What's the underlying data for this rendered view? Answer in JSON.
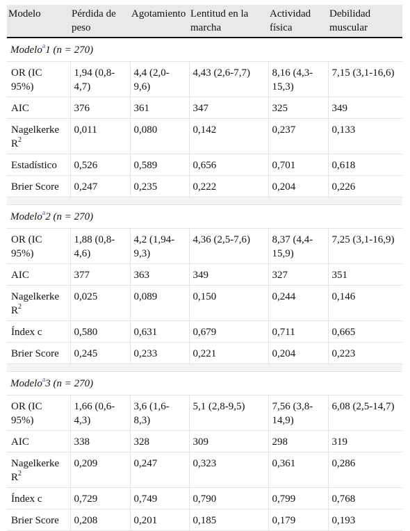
{
  "headers": [
    "Modelo",
    "Pérdida de peso",
    "Agotamiento",
    "Lentitud en la marcha",
    "Actividad física",
    "Debilidad muscular"
  ],
  "sections": [
    {
      "label_pre": "Modelo",
      "footnote": "a",
      "label_post": "1 (n = 270)",
      "rows": [
        {
          "label": "OR (IC 95%)",
          "values": [
            "1,94 (0,8-4,7)",
            "4,4 (2,0-9,6)",
            "4,43 (2,6-7,7)",
            "8,16 (4,3-15,3)",
            "7,15 (3,1-16,6)"
          ]
        },
        {
          "label": "AIC",
          "values": [
            "376",
            "361",
            "347",
            "325",
            "349"
          ]
        },
        {
          "label": "Nagelkerke R",
          "sup": "2",
          "values": [
            "0,011",
            "0,080",
            "0,142",
            "0,237",
            "0,133"
          ]
        },
        {
          "label": "Estadístico",
          "values": [
            "0,526",
            "0,589",
            "0,656",
            "0,701",
            "0,618"
          ]
        },
        {
          "label": "Brier Score",
          "values": [
            "0,247",
            "0,235",
            "0,222",
            "0,204",
            "0,226"
          ]
        }
      ]
    },
    {
      "label_pre": "Modelo",
      "footnote": "a",
      "label_post": "2 (n = 270)",
      "rows": [
        {
          "label": "OR (IC 95%)",
          "values": [
            "1,88 (0,8-4,6)",
            "4,2 (1,94-9,3)",
            "4,36 (2,5-7,6)",
            "8,37 (4,4-15,9)",
            "7,25 (3,1-16,9)"
          ]
        },
        {
          "label": "AIC",
          "values": [
            "377",
            "363",
            "349",
            "327",
            "351"
          ]
        },
        {
          "label": "Nagelkerke R",
          "sup": "2",
          "values": [
            "0,025",
            "0,089",
            "0,150",
            "0,244",
            "0,146"
          ]
        },
        {
          "label": "Índex c",
          "values": [
            "0,580",
            "0,631",
            "0,679",
            "0,711",
            "0,665"
          ]
        },
        {
          "label": "Brier Score",
          "values": [
            "0,245",
            "0,233",
            "0,221",
            "0,204",
            "0,223"
          ]
        }
      ]
    },
    {
      "label_pre": "Modelo",
      "footnote": "a",
      "label_post": "3 (n = 270)",
      "rows": [
        {
          "label": "OR (IC 95%)",
          "values": [
            "1,66 (0,6-4,3)",
            "3,6 (1,6-8,3)",
            "5,1 (2,8-9,5)",
            "7,56 (3,8-14,9)",
            "6,08 (2,5-14,7)"
          ]
        },
        {
          "label": "AIC",
          "values": [
            "338",
            "328",
            "309",
            "298",
            "319"
          ]
        },
        {
          "label": "Nagelkerke R",
          "sup": "2",
          "values": [
            "0,209",
            "0,247",
            "0,323",
            "0,361",
            "0,286"
          ]
        },
        {
          "label": "Índex c",
          "values": [
            "0,729",
            "0,749",
            "0,790",
            "0,799",
            "0,768"
          ]
        },
        {
          "label": "Brier Score",
          "values": [
            "0,208",
            "0,201",
            "0,185",
            "0,179",
            "0,193"
          ]
        }
      ]
    }
  ]
}
